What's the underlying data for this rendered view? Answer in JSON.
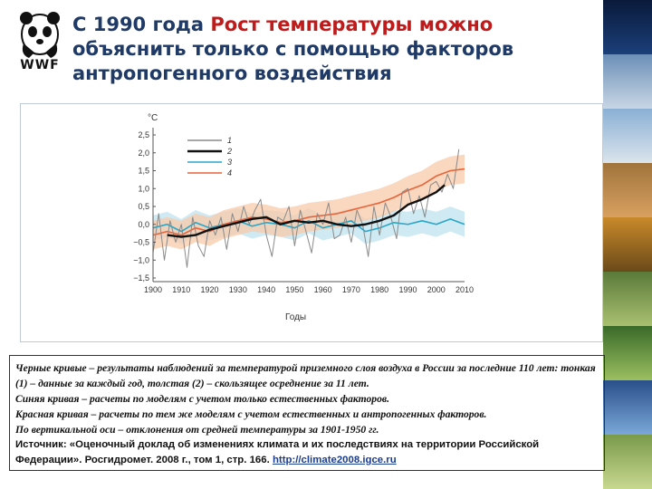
{
  "logo": {
    "label": "WWF"
  },
  "title": {
    "prefix": "С 1990 года",
    "highlight": "Рост температуры можно",
    "rest": "объяснить только с помощью факторов антропогенного воздействия"
  },
  "chart_data": {
    "type": "line",
    "ylabel": "°С",
    "xlabel": "Годы",
    "xlim": [
      1900,
      2010
    ],
    "ylim": [
      -1.5,
      2.5
    ],
    "x_ticks": [
      1900,
      1910,
      1920,
      1930,
      1940,
      1950,
      1960,
      1970,
      1980,
      1990,
      2000,
      2010
    ],
    "y_ticks": [
      2.5,
      2.0,
      1.5,
      1.0,
      0.5,
      0.0,
      -0.5,
      -1.0,
      -1.5
    ],
    "y_tick_labels": [
      "2,5",
      "2,0",
      "1,5",
      "1,0",
      "0,5",
      "0,0",
      "−0,5",
      "−1,0",
      "−1,5"
    ],
    "legend_position": "top-left",
    "grid": false,
    "series": [
      {
        "name": "1",
        "color": "#8a8a8a",
        "kind": "annual",
        "x": [
          1900,
          1902,
          1904,
          1906,
          1908,
          1910,
          1912,
          1914,
          1916,
          1918,
          1920,
          1922,
          1924,
          1926,
          1928,
          1930,
          1932,
          1934,
          1936,
          1938,
          1940,
          1942,
          1944,
          1946,
          1948,
          1950,
          1952,
          1954,
          1956,
          1958,
          1960,
          1962,
          1964,
          1966,
          1968,
          1970,
          1972,
          1974,
          1976,
          1978,
          1980,
          1982,
          1984,
          1986,
          1988,
          1990,
          1992,
          1994,
          1996,
          1998,
          2000,
          2002,
          2004,
          2006,
          2008
        ],
        "y": [
          -0.8,
          0.3,
          -1.0,
          0.1,
          -0.5,
          0.0,
          -1.2,
          0.2,
          -0.6,
          -0.9,
          0.1,
          -0.3,
          0.2,
          -0.7,
          0.3,
          -0.2,
          0.5,
          0.0,
          0.4,
          0.7,
          -0.3,
          -0.9,
          0.2,
          0.1,
          0.5,
          -0.6,
          0.4,
          -0.2,
          -0.8,
          0.3,
          0.0,
          0.6,
          -0.4,
          -0.3,
          0.2,
          -0.5,
          0.4,
          0.0,
          -0.9,
          0.5,
          -0.3,
          0.6,
          0.2,
          -0.4,
          0.9,
          1.0,
          0.3,
          0.8,
          0.2,
          1.1,
          1.2,
          0.9,
          1.4,
          1.0,
          2.1
        ]
      },
      {
        "name": "2",
        "color": "#111111",
        "kind": "smoothed",
        "x": [
          1905,
          1910,
          1915,
          1920,
          1925,
          1930,
          1935,
          1940,
          1945,
          1950,
          1955,
          1960,
          1965,
          1970,
          1975,
          1980,
          1985,
          1990,
          1995,
          2000,
          2003
        ],
        "y": [
          -0.3,
          -0.35,
          -0.3,
          -0.15,
          -0.05,
          0.05,
          0.15,
          0.2,
          0.0,
          0.1,
          0.05,
          0.1,
          0.0,
          -0.05,
          0.0,
          0.1,
          0.25,
          0.55,
          0.7,
          0.9,
          1.1
        ]
      },
      {
        "name": "3",
        "color": "#2aa6c8",
        "kind": "model-natural",
        "x": [
          1900,
          1905,
          1910,
          1915,
          1920,
          1925,
          1930,
          1935,
          1940,
          1945,
          1950,
          1955,
          1960,
          1965,
          1970,
          1975,
          1980,
          1985,
          1990,
          1995,
          2000,
          2005,
          2010
        ],
        "y": [
          -0.1,
          0.0,
          -0.2,
          0.05,
          -0.1,
          0.0,
          0.1,
          -0.05,
          0.05,
          0.0,
          -0.1,
          0.1,
          -0.1,
          0.0,
          0.1,
          -0.2,
          -0.1,
          0.05,
          0.0,
          0.1,
          0.0,
          0.15,
          0.0
        ]
      },
      {
        "name": "4",
        "color": "#e8643a",
        "kind": "model-natural-anthropogenic",
        "x": [
          1900,
          1905,
          1910,
          1915,
          1920,
          1925,
          1930,
          1935,
          1940,
          1945,
          1950,
          1955,
          1960,
          1965,
          1970,
          1975,
          1980,
          1985,
          1990,
          1995,
          2000,
          2005,
          2010
        ],
        "y": [
          -0.3,
          -0.2,
          -0.3,
          -0.1,
          -0.2,
          0.0,
          0.1,
          0.2,
          0.15,
          0.05,
          0.1,
          0.2,
          0.25,
          0.3,
          0.4,
          0.5,
          0.6,
          0.75,
          0.95,
          1.1,
          1.35,
          1.5,
          1.55
        ]
      }
    ],
    "bands": [
      {
        "for": "3",
        "color": "#bfe3ef",
        "half_width": 0.35
      },
      {
        "for": "4",
        "color": "#f8c9aa",
        "half_width": 0.4
      }
    ]
  },
  "caption": {
    "line1": "Черные кривые – результаты наблюдений за температурой приземного слоя воздуха в России за последние 110 лет: тонкая (1) – данные за каждый год, толстая (2) – скользящее осреднение за 11 лет.",
    "line2": "Синяя кривая – расчеты по моделям с учетом только естественных факторов.",
    "line3": "Красная кривая – расчеты по тем же моделям с учетом естественных и антропогенных факторов.",
    "line4": "По вертикальной оси – отклонения от средней температуры за 1901-1950 гг.",
    "source_prefix": "Источник: «Оценочный доклад об изменениях климата и их последствиях на территории Российской Федерации». Росгидромет. 2008 г., том 1, стр. 166.",
    "source_link": "http://climate2008.igce.ru"
  }
}
